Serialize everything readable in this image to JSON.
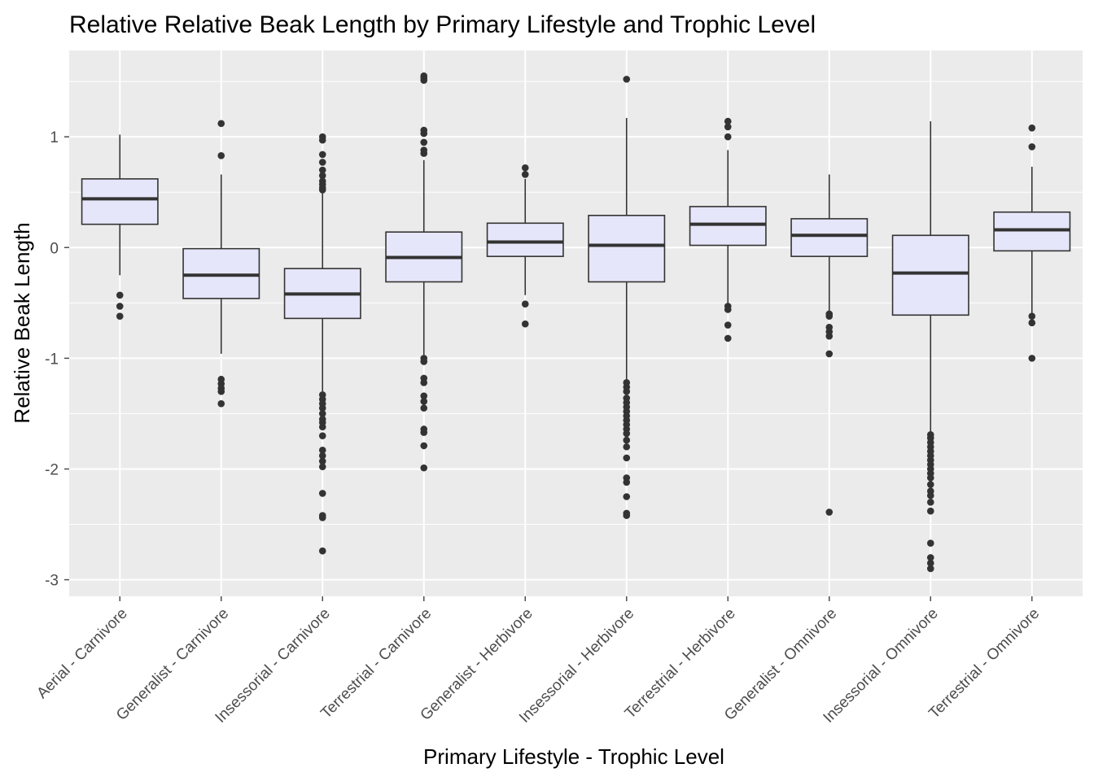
{
  "chart_data": {
    "type": "boxplot",
    "title": "Relative Relative Beak Length by Primary Lifestyle and Trophic Level",
    "xlabel": "Primary Lifestyle - Trophic Level",
    "ylabel": "Relative Beak Length",
    "ylim": [
      -3.15,
      1.78
    ],
    "yticks": [
      -3,
      -2,
      -1,
      0,
      1
    ],
    "grid": true,
    "colors": {
      "panel_bg": "#ebebeb",
      "grid": "#ffffff",
      "box_fill": "#e6e6fa",
      "box_stroke": "#333333",
      "outlier": "#333333",
      "tick": "#4d4d4d"
    },
    "categories": [
      "Aerial - Carnivore",
      "Generalist - Carnivore",
      "Insessorial - Carnivore",
      "Terrestrial - Carnivore",
      "Generalist - Herbivore",
      "Insessorial - Herbivore",
      "Terrestrial - Herbivore",
      "Generalist - Omnivore",
      "Insessorial - Omnivore",
      "Terrestrial - Omnivore"
    ],
    "boxes": [
      {
        "whisker_low": -0.25,
        "q1": 0.21,
        "median": 0.44,
        "q3": 0.62,
        "whisker_high": 1.02,
        "outliers": [
          -0.43,
          -0.53,
          -0.62
        ]
      },
      {
        "whisker_low": -0.96,
        "q1": -0.46,
        "median": -0.25,
        "q3": -0.01,
        "whisker_high": 0.66,
        "outliers": [
          1.12,
          0.83,
          -1.19,
          -1.23,
          -1.27,
          -1.3,
          -1.41
        ]
      },
      {
        "whisker_low": -1.3,
        "q1": -0.64,
        "median": -0.42,
        "q3": -0.19,
        "whisker_high": 0.49,
        "outliers": [
          1.0,
          0.97,
          0.84,
          0.77,
          0.7,
          0.65,
          0.6,
          0.57,
          0.54,
          0.52,
          -1.33,
          -1.37,
          -1.41,
          -1.45,
          -1.5,
          -1.55,
          -1.58,
          -1.62,
          -1.7,
          -1.83,
          -1.88,
          -1.93,
          -1.98,
          -2.22,
          -2.42,
          -2.44,
          -2.74
        ]
      },
      {
        "whisker_low": -0.97,
        "q1": -0.31,
        "median": -0.09,
        "q3": 0.14,
        "whisker_high": 0.79,
        "outliers": [
          1.55,
          1.53,
          1.51,
          1.06,
          1.03,
          0.95,
          0.88,
          0.85,
          -1.0,
          -1.03,
          -1.18,
          -1.22,
          -1.34,
          -1.39,
          -1.45,
          -1.64,
          -1.67,
          -1.79,
          -1.99
        ]
      },
      {
        "whisker_low": -0.43,
        "q1": -0.08,
        "median": 0.05,
        "q3": 0.22,
        "whisker_high": 0.62,
        "outliers": [
          0.72,
          0.66,
          -0.51,
          -0.69
        ]
      },
      {
        "whisker_low": -1.2,
        "q1": -0.31,
        "median": 0.02,
        "q3": 0.29,
        "whisker_high": 1.17,
        "outliers": [
          1.52,
          -1.22,
          -1.26,
          -1.3,
          -1.36,
          -1.4,
          -1.44,
          -1.48,
          -1.52,
          -1.56,
          -1.6,
          -1.64,
          -1.68,
          -1.74,
          -1.8,
          -1.9,
          -2.08,
          -2.12,
          -2.25,
          -2.4,
          -2.42
        ]
      },
      {
        "whisker_low": -0.5,
        "q1": 0.02,
        "median": 0.21,
        "q3": 0.37,
        "whisker_high": 0.88,
        "outliers": [
          1.14,
          1.09,
          1.0,
          -0.53,
          -0.56,
          -0.7,
          -0.82
        ]
      },
      {
        "whisker_low": -0.58,
        "q1": -0.08,
        "median": 0.11,
        "q3": 0.26,
        "whisker_high": 0.66,
        "outliers": [
          -0.6,
          -0.62,
          -0.72,
          -0.76,
          -0.8,
          -0.96,
          -2.39
        ]
      },
      {
        "whisker_low": -1.67,
        "q1": -0.61,
        "median": -0.23,
        "q3": 0.11,
        "whisker_high": 1.14,
        "outliers": [
          -1.69,
          -1.72,
          -1.76,
          -1.8,
          -1.84,
          -1.88,
          -1.92,
          -1.96,
          -2.0,
          -2.04,
          -2.08,
          -2.14,
          -2.2,
          -2.24,
          -2.3,
          -2.38,
          -2.67,
          -2.8,
          -2.85,
          -2.9
        ]
      },
      {
        "whisker_low": -0.6,
        "q1": -0.03,
        "median": 0.16,
        "q3": 0.32,
        "whisker_high": 0.73,
        "outliers": [
          1.08,
          0.91,
          -0.62,
          -0.68,
          -1.0
        ]
      }
    ]
  }
}
